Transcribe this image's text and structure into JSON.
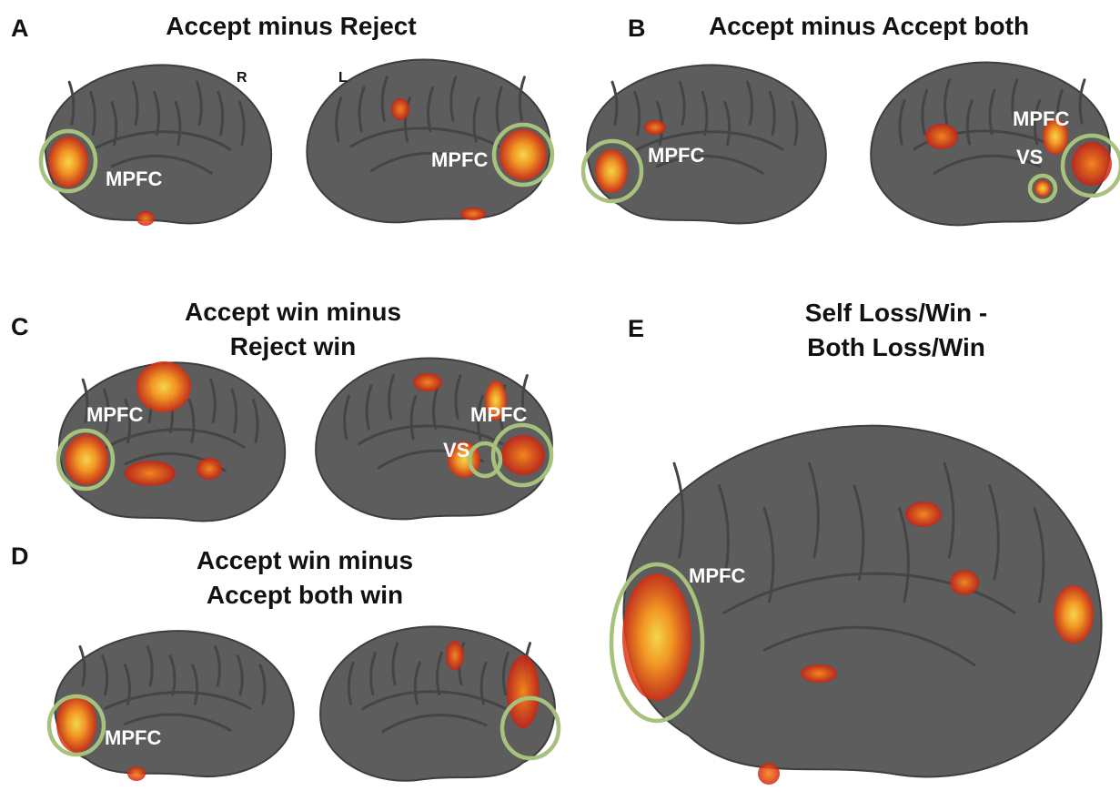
{
  "panels": [
    {
      "letter": "A",
      "title": [
        "Accept minus Reject"
      ],
      "labels": [
        "R",
        "L",
        "MPFC",
        "MPFC"
      ]
    },
    {
      "letter": "B",
      "title": [
        "Accept minus Accept both"
      ],
      "labels": [
        "MPFC",
        "MPFC",
        "VS"
      ]
    },
    {
      "letter": "C",
      "title": [
        "Accept win minus",
        "Reject win"
      ],
      "labels": [
        "MPFC",
        "MPFC",
        "VS"
      ]
    },
    {
      "letter": "D",
      "title": [
        "Accept win minus",
        "Accept both win"
      ],
      "labels": [
        "MPFC"
      ]
    },
    {
      "letter": "E",
      "title": [
        "Self Loss/Win -",
        "Both Loss/Win"
      ],
      "labels": [
        "MPFC"
      ]
    }
  ]
}
